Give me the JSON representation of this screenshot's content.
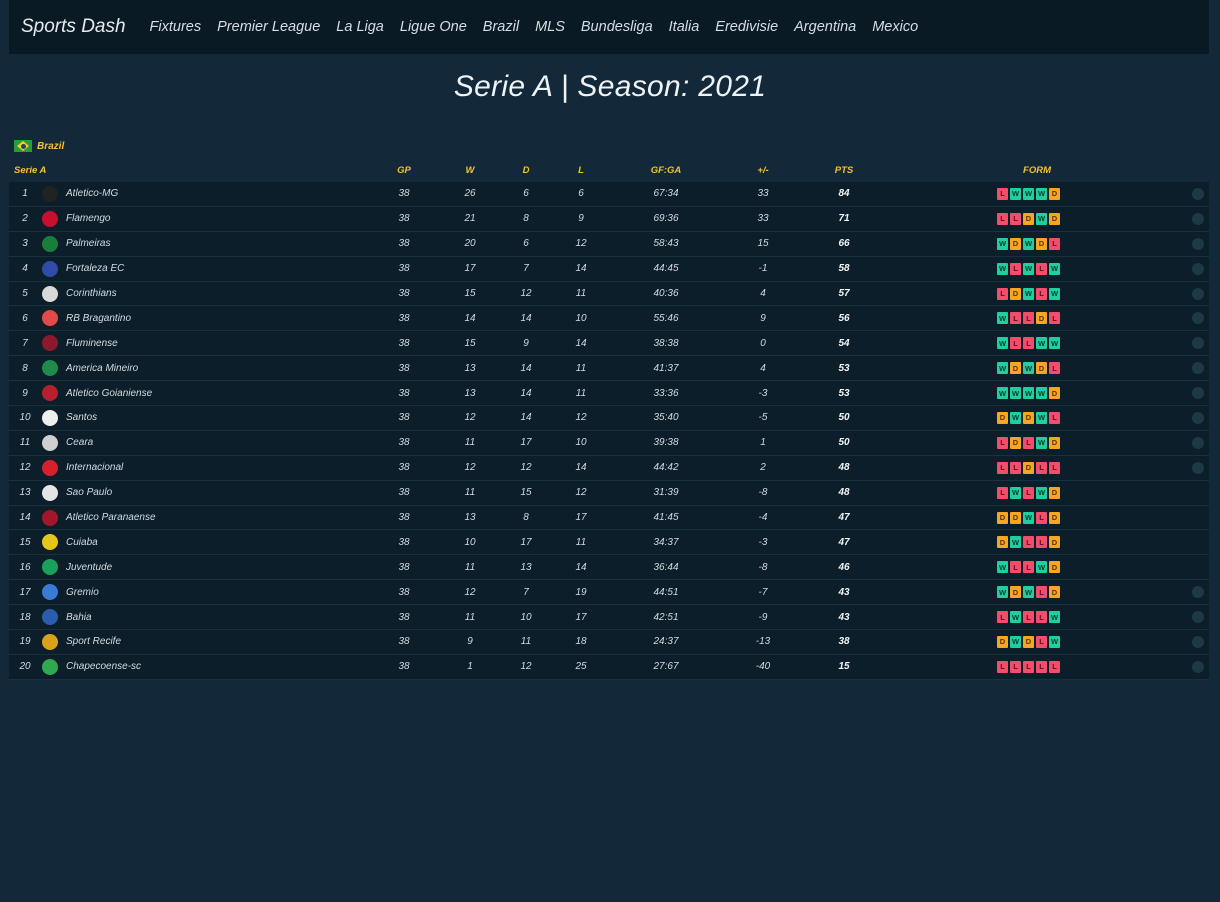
{
  "nav": {
    "brand": "Sports Dash",
    "links": [
      "Fixtures",
      "Premier League",
      "La Liga",
      "Ligue One",
      "Brazil",
      "MLS",
      "Bundesliga",
      "Italia",
      "Eredivisie",
      "Argentina",
      "Mexico"
    ]
  },
  "page_title": "Serie A | Season: 2021",
  "country": "Brazil",
  "headers": {
    "league": "Serie A",
    "gp": "GP",
    "w": "W",
    "d": "D",
    "l": "L",
    "gfga": "GF:GA",
    "gd": "+/-",
    "pts": "PTS",
    "form": "FORM"
  },
  "colors": {
    "win": "#1fcf9e",
    "loss": "#f24d6b",
    "draw": "#f6a623",
    "accent": "#f2c230"
  },
  "standings": [
    {
      "pos": "1",
      "team": "Atletico-MG",
      "gp": "38",
      "w": "26",
      "d": "6",
      "l": "6",
      "gfga": "67:34",
      "gd": "33",
      "pts": "84",
      "form": [
        "L",
        "W",
        "W",
        "W",
        "D"
      ],
      "crest": "#222222",
      "info": true
    },
    {
      "pos": "2",
      "team": "Flamengo",
      "gp": "38",
      "w": "21",
      "d": "8",
      "l": "9",
      "gfga": "69:36",
      "gd": "33",
      "pts": "71",
      "form": [
        "L",
        "L",
        "D",
        "W",
        "D"
      ],
      "crest": "#c8102e",
      "info": true
    },
    {
      "pos": "3",
      "team": "Palmeiras",
      "gp": "38",
      "w": "20",
      "d": "6",
      "l": "12",
      "gfga": "58:43",
      "gd": "15",
      "pts": "66",
      "form": [
        "W",
        "D",
        "W",
        "D",
        "L"
      ],
      "crest": "#1b7d3a",
      "info": true
    },
    {
      "pos": "4",
      "team": "Fortaleza EC",
      "gp": "38",
      "w": "17",
      "d": "7",
      "l": "14",
      "gfga": "44:45",
      "gd": "-1",
      "pts": "58",
      "form": [
        "W",
        "L",
        "W",
        "L",
        "W"
      ],
      "crest": "#2f4ca8",
      "info": true
    },
    {
      "pos": "5",
      "team": "Corinthians",
      "gp": "38",
      "w": "15",
      "d": "12",
      "l": "11",
      "gfga": "40:36",
      "gd": "4",
      "pts": "57",
      "form": [
        "L",
        "D",
        "W",
        "L",
        "W"
      ],
      "crest": "#d9d9d9",
      "info": true
    },
    {
      "pos": "6",
      "team": "RB Bragantino",
      "gp": "38",
      "w": "14",
      "d": "14",
      "l": "10",
      "gfga": "55:46",
      "gd": "9",
      "pts": "56",
      "form": [
        "W",
        "L",
        "L",
        "D",
        "L"
      ],
      "crest": "#e24a4a",
      "info": true
    },
    {
      "pos": "7",
      "team": "Fluminense",
      "gp": "38",
      "w": "15",
      "d": "9",
      "l": "14",
      "gfga": "38:38",
      "gd": "0",
      "pts": "54",
      "form": [
        "W",
        "L",
        "L",
        "W",
        "W"
      ],
      "crest": "#8b1a2f",
      "info": true
    },
    {
      "pos": "8",
      "team": "America Mineiro",
      "gp": "38",
      "w": "13",
      "d": "14",
      "l": "11",
      "gfga": "41:37",
      "gd": "4",
      "pts": "53",
      "form": [
        "W",
        "D",
        "W",
        "D",
        "L"
      ],
      "crest": "#1f8a4c",
      "info": true
    },
    {
      "pos": "9",
      "team": "Atletico Goianiense",
      "gp": "38",
      "w": "13",
      "d": "14",
      "l": "11",
      "gfga": "33:36",
      "gd": "-3",
      "pts": "53",
      "form": [
        "W",
        "W",
        "W",
        "W",
        "D"
      ],
      "crest": "#b5202e",
      "info": true
    },
    {
      "pos": "10",
      "team": "Santos",
      "gp": "38",
      "w": "12",
      "d": "14",
      "l": "12",
      "gfga": "35:40",
      "gd": "-5",
      "pts": "50",
      "form": [
        "D",
        "W",
        "D",
        "W",
        "L"
      ],
      "crest": "#eeeeee",
      "info": true
    },
    {
      "pos": "11",
      "team": "Ceara",
      "gp": "38",
      "w": "11",
      "d": "17",
      "l": "10",
      "gfga": "39:38",
      "gd": "1",
      "pts": "50",
      "form": [
        "L",
        "D",
        "L",
        "W",
        "D"
      ],
      "crest": "#cfcfcf",
      "info": true
    },
    {
      "pos": "12",
      "team": "Internacional",
      "gp": "38",
      "w": "12",
      "d": "12",
      "l": "14",
      "gfga": "44:42",
      "gd": "2",
      "pts": "48",
      "form": [
        "L",
        "L",
        "D",
        "L",
        "L"
      ],
      "crest": "#d6202b",
      "info": true
    },
    {
      "pos": "13",
      "team": "Sao Paulo",
      "gp": "38",
      "w": "11",
      "d": "15",
      "l": "12",
      "gfga": "31:39",
      "gd": "-8",
      "pts": "48",
      "form": [
        "L",
        "W",
        "L",
        "W",
        "D"
      ],
      "crest": "#e5e5e5",
      "info": false
    },
    {
      "pos": "14",
      "team": "Atletico Paranaense",
      "gp": "38",
      "w": "13",
      "d": "8",
      "l": "17",
      "gfga": "41:45",
      "gd": "-4",
      "pts": "47",
      "form": [
        "D",
        "D",
        "W",
        "L",
        "D"
      ],
      "crest": "#a4162b",
      "info": false
    },
    {
      "pos": "15",
      "team": "Cuiaba",
      "gp": "38",
      "w": "10",
      "d": "17",
      "l": "11",
      "gfga": "34:37",
      "gd": "-3",
      "pts": "47",
      "form": [
        "D",
        "W",
        "L",
        "L",
        "D"
      ],
      "crest": "#e6c619",
      "info": false
    },
    {
      "pos": "16",
      "team": "Juventude",
      "gp": "38",
      "w": "11",
      "d": "13",
      "l": "14",
      "gfga": "36:44",
      "gd": "-8",
      "pts": "46",
      "form": [
        "W",
        "L",
        "L",
        "W",
        "D"
      ],
      "crest": "#1aa05a",
      "info": false
    },
    {
      "pos": "17",
      "team": "Gremio",
      "gp": "38",
      "w": "12",
      "d": "7",
      "l": "19",
      "gfga": "44:51",
      "gd": "-7",
      "pts": "43",
      "form": [
        "W",
        "D",
        "W",
        "L",
        "D"
      ],
      "crest": "#3a7bd5",
      "info": true
    },
    {
      "pos": "18",
      "team": "Bahia",
      "gp": "38",
      "w": "11",
      "d": "10",
      "l": "17",
      "gfga": "42:51",
      "gd": "-9",
      "pts": "43",
      "form": [
        "L",
        "W",
        "L",
        "L",
        "W"
      ],
      "crest": "#2a5db0",
      "info": true
    },
    {
      "pos": "19",
      "team": "Sport Recife",
      "gp": "38",
      "w": "9",
      "d": "11",
      "l": "18",
      "gfga": "24:37",
      "gd": "-13",
      "pts": "38",
      "form": [
        "D",
        "W",
        "D",
        "L",
        "W"
      ],
      "crest": "#d8a21c",
      "info": true
    },
    {
      "pos": "20",
      "team": "Chapecoense-sc",
      "gp": "38",
      "w": "1",
      "d": "12",
      "l": "25",
      "gfga": "27:67",
      "gd": "-40",
      "pts": "15",
      "form": [
        "L",
        "L",
        "L",
        "L",
        "L"
      ],
      "crest": "#2fa84f",
      "info": true
    }
  ]
}
